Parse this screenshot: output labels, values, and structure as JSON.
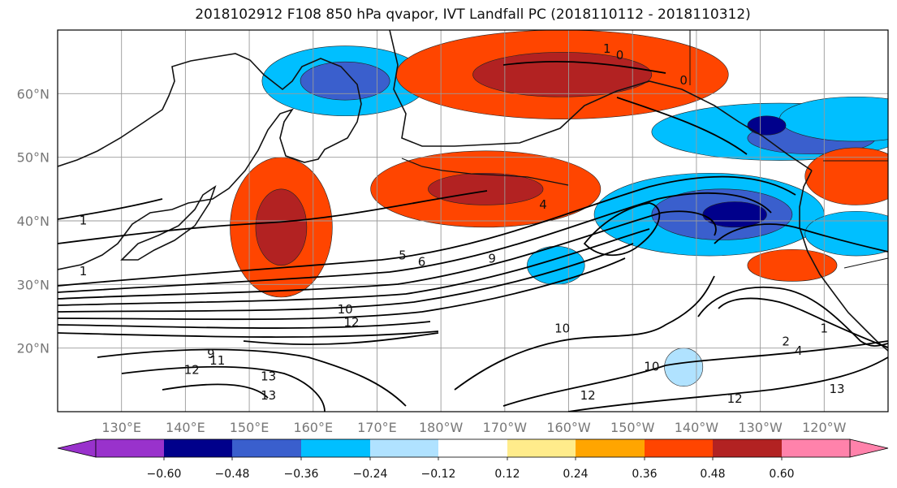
{
  "title": "2018102912 F108 850 hPa qvapor, IVT Landfall PC (2018110112 - 2018110312)",
  "map": {
    "lon_range": [
      120,
      250
    ],
    "lat_range": [
      10,
      70
    ],
    "lon_ticks": [
      "130°E",
      "140°E",
      "150°E",
      "160°E",
      "170°E",
      "180°W",
      "170°W",
      "160°W",
      "150°W",
      "140°W",
      "130°W",
      "120°W"
    ],
    "lat_ticks": [
      "60°N",
      "50°N",
      "40°N",
      "30°N",
      "20°N"
    ],
    "contour_labels": [
      {
        "text": "1",
        "lon": 206,
        "lat": 67
      },
      {
        "text": "0",
        "lon": 208,
        "lat": 66
      },
      {
        "text": "0",
        "lon": 218,
        "lat": 62
      },
      {
        "text": "4",
        "lon": 196,
        "lat": 42.5
      },
      {
        "text": "5",
        "lon": 174,
        "lat": 34.5
      },
      {
        "text": "6",
        "lon": 177,
        "lat": 33.5
      },
      {
        "text": "9",
        "lon": 188,
        "lat": 34
      },
      {
        "text": "10",
        "lon": 165,
        "lat": 26
      },
      {
        "text": "12",
        "lon": 166,
        "lat": 24
      },
      {
        "text": "9",
        "lon": 144,
        "lat": 19
      },
      {
        "text": "11",
        "lon": 145,
        "lat": 18
      },
      {
        "text": "12",
        "lon": 141,
        "lat": 16.5
      },
      {
        "text": "13",
        "lon": 153,
        "lat": 15.5
      },
      {
        "text": "13",
        "lon": 153,
        "lat": 12.5
      },
      {
        "text": "10",
        "lon": 199,
        "lat": 23
      },
      {
        "text": "10",
        "lon": 213,
        "lat": 17
      },
      {
        "text": "12",
        "lon": 203,
        "lat": 12.5
      },
      {
        "text": "12",
        "lon": 226,
        "lat": 12
      },
      {
        "text": "13",
        "lon": 242,
        "lat": 13.5
      },
      {
        "text": "2",
        "lon": 234,
        "lat": 21
      },
      {
        "text": "4",
        "lon": 236,
        "lat": 19.5
      },
      {
        "text": "1",
        "lon": 240,
        "lat": 23
      },
      {
        "text": "1",
        "lon": 124,
        "lat": 32
      },
      {
        "text": "1",
        "lon": 124,
        "lat": 40
      }
    ]
  },
  "colorbar": {
    "ticks": [
      "−0.60",
      "−0.48",
      "−0.36",
      "−0.24",
      "−0.12",
      "0.12",
      "0.24",
      "0.36",
      "0.48",
      "0.60"
    ],
    "colors": [
      "#9932CC",
      "#00008B",
      "#3A5FCD",
      "#00BFFF",
      "#B0E2FF",
      "#FFFFFF",
      "#FFEC8B",
      "#FFA500",
      "#FF4500",
      "#B22222",
      "#FF82AB"
    ]
  },
  "shading": [
    {
      "lon": 165,
      "lat": 62,
      "rx": 26,
      "ry": 11,
      "value": -0.36
    },
    {
      "lon": 165,
      "lat": 62,
      "rx": 14,
      "ry": 6,
      "value": -0.48
    },
    {
      "lon": 199,
      "lat": 63,
      "rx": 52,
      "ry": 14,
      "value": 0.36
    },
    {
      "lon": 199,
      "lat": 63,
      "rx": 28,
      "ry": 7,
      "value": 0.48
    },
    {
      "lon": 233,
      "lat": 54,
      "rx": 40,
      "ry": 9,
      "value": -0.36
    },
    {
      "lon": 238,
      "lat": 53,
      "rx": 20,
      "ry": 5,
      "value": -0.48
    },
    {
      "lon": 245,
      "lat": 56,
      "rx": 24,
      "ry": 7,
      "value": -0.36
    },
    {
      "lon": 187,
      "lat": 45,
      "rx": 36,
      "ry": 12,
      "value": 0.36
    },
    {
      "lon": 187,
      "lat": 45,
      "rx": 18,
      "ry": 5,
      "value": 0.48
    },
    {
      "lon": 155,
      "lat": 39,
      "rx": 16,
      "ry": 22,
      "value": 0.36
    },
    {
      "lon": 155,
      "lat": 39,
      "rx": 8,
      "ry": 12,
      "value": 0.48
    },
    {
      "lon": 222,
      "lat": 41,
      "rx": 36,
      "ry": 13,
      "value": -0.36
    },
    {
      "lon": 224,
      "lat": 41,
      "rx": 22,
      "ry": 8,
      "value": -0.48
    },
    {
      "lon": 226,
      "lat": 41,
      "rx": 10,
      "ry": 4,
      "value": -0.6
    },
    {
      "lon": 235,
      "lat": 33,
      "rx": 14,
      "ry": 5,
      "value": 0.36
    },
    {
      "lon": 245,
      "lat": 38,
      "rx": 16,
      "ry": 7,
      "value": -0.36
    },
    {
      "lon": 245,
      "lat": 47,
      "rx": 16,
      "ry": 9,
      "value": 0.36
    },
    {
      "lon": 198,
      "lat": 33,
      "rx": 9,
      "ry": 6,
      "value": -0.36
    },
    {
      "lon": 218,
      "lat": 17,
      "rx": 6,
      "ry": 6,
      "value": -0.24
    },
    {
      "lon": 231,
      "lat": 55,
      "rx": 6,
      "ry": 3,
      "value": -0.6
    }
  ]
}
